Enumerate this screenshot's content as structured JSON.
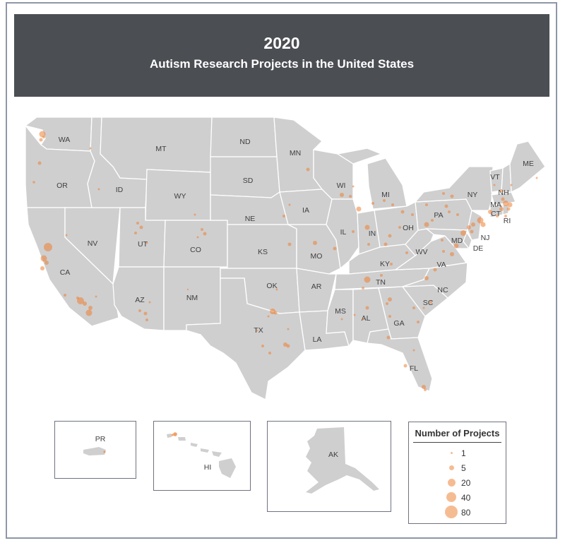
{
  "header": {
    "year": "2020",
    "subtitle": "Autism Research Projects in the United States"
  },
  "map": {
    "land_color": "#cfcfcf",
    "border_color": "#ffffff",
    "marker_color": "#ee7f33",
    "state_labels": [
      "WA",
      "OR",
      "CA",
      "NV",
      "ID",
      "MT",
      "WY",
      "UT",
      "CO",
      "AZ",
      "NM",
      "ND",
      "SD",
      "NE",
      "KS",
      "OK",
      "TX",
      "MN",
      "IA",
      "MO",
      "AR",
      "LA",
      "WI",
      "IL",
      "MI",
      "IN",
      "KY",
      "TN",
      "MS",
      "AL",
      "GA",
      "FL",
      "OH",
      "WV",
      "VA",
      "NC",
      "SC",
      "PA",
      "NY",
      "VT",
      "NH",
      "ME",
      "MA",
      "CT",
      "RI",
      "NJ",
      "MD",
      "DE"
    ]
  },
  "insets": {
    "pr_label": "PR",
    "hi_label": "HI",
    "ak_label": "AK"
  },
  "legend": {
    "title": "Number of Projects",
    "entries": [
      {
        "label": "1",
        "value": 1
      },
      {
        "label": "5",
        "value": 5
      },
      {
        "label": "20",
        "value": 20
      },
      {
        "label": "40",
        "value": 40
      },
      {
        "label": "80",
        "value": 80
      }
    ]
  }
}
